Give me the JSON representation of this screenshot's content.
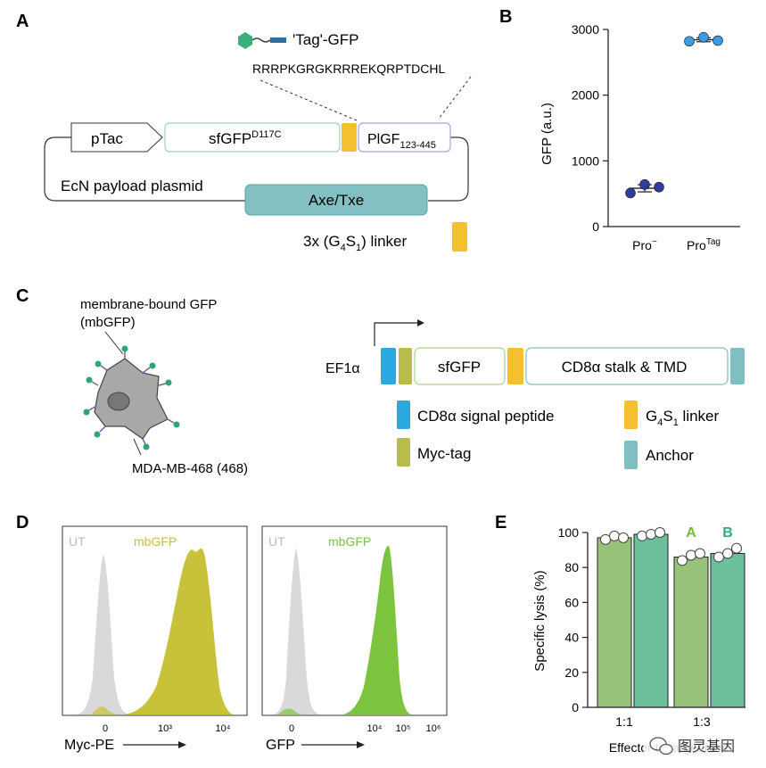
{
  "panel_a": {
    "letter": "A",
    "tag_label": "'Tag'-GFP",
    "sequence": "RRRPKGRGKRRREKQRPTDCHL",
    "promoter": "pTac",
    "sfgfp_base": "sfGFP",
    "sfgfp_sup": "D117C",
    "plgf_base": "PlGF",
    "plgf_sub": "123-445",
    "plasmid_label": "EcN payload plasmid",
    "toxin_label": "Axe/Txe",
    "linker_label": "3x (G4S1) linker",
    "colors": {
      "toxin": "#83c0c4",
      "linker": "#f5c02f",
      "sfgfp_border": "#9cd3c9"
    }
  },
  "panel_b": {
    "letter": "B",
    "chart_data": {
      "type": "scatter",
      "ylabel": "GFP (a.u.)",
      "ylim": [
        0,
        3000
      ],
      "yticks": [
        0,
        1000,
        2000,
        3000
      ],
      "categories": [
        {
          "base": "Pro",
          "sup": "−"
        },
        {
          "base": "Pro",
          "sup": "Tag"
        }
      ],
      "series": [
        {
          "category": "Pro−",
          "points": [
            510,
            640,
            600
          ],
          "mean": 583,
          "error": 55,
          "color": "#2c3d9c"
        },
        {
          "category": "ProTag",
          "points": [
            2820,
            2880,
            2830
          ],
          "mean": 2843,
          "error": 30,
          "color": "#3d9be0"
        }
      ]
    }
  },
  "panel_c": {
    "letter": "C",
    "mbgfp_line1": "membrane-bound GFP",
    "mbgfp_line2": "(mbGFP)",
    "cell_label": "MDA-MB-468 (468)",
    "promoter": "EF1α",
    "sfgfp": "sfGFP",
    "cd8_stalk": "CD8α stalk & TMD",
    "legend": [
      {
        "label": "CD8α signal peptide",
        "color": "#2aa8e0"
      },
      {
        "label": "G4S1 linker",
        "color": "#f5c02f"
      },
      {
        "label": "Myc-tag",
        "color": "#b8bc4a"
      },
      {
        "label": "Anchor",
        "color": "#7fbfc2"
      }
    ]
  },
  "panel_d": {
    "letter": "D",
    "left": {
      "ut": "UT",
      "mb": "mbGFP",
      "xlabel": "Myc-PE",
      "xticks": [
        "0",
        "10³",
        "10⁴"
      ],
      "mb_color": "#c8c23a"
    },
    "right": {
      "ut": "UT",
      "mb": "mbGFP",
      "xlabel": "GFP",
      "xticks": [
        "0",
        "10⁴",
        "10⁵",
        "10⁶"
      ],
      "mb_color": "#7cc43e"
    }
  },
  "panel_e": {
    "letter": "E",
    "chart_data": {
      "type": "bar",
      "ylabel": "Specific lysis (%)",
      "xlabel": "Effector to target ratio",
      "ylim": [
        0,
        100
      ],
      "yticks": [
        0,
        20,
        40,
        60,
        80,
        100
      ],
      "categories": [
        "1:1",
        "1:3"
      ],
      "series": [
        {
          "name": "A",
          "values": [
            97,
            86
          ],
          "points": [
            [
              96,
              98,
              97
            ],
            [
              84,
              87,
              88
            ]
          ],
          "color": "#98c27a"
        },
        {
          "name": "B",
          "values": [
            99,
            88
          ],
          "points": [
            [
              98,
              99,
              100
            ],
            [
              86,
              88,
              91
            ]
          ],
          "color": "#6bbf9a"
        }
      ],
      "series_label_colors": [
        "#7cb83c",
        "#3aaa7a"
      ]
    }
  },
  "watermark": "图灵基因"
}
